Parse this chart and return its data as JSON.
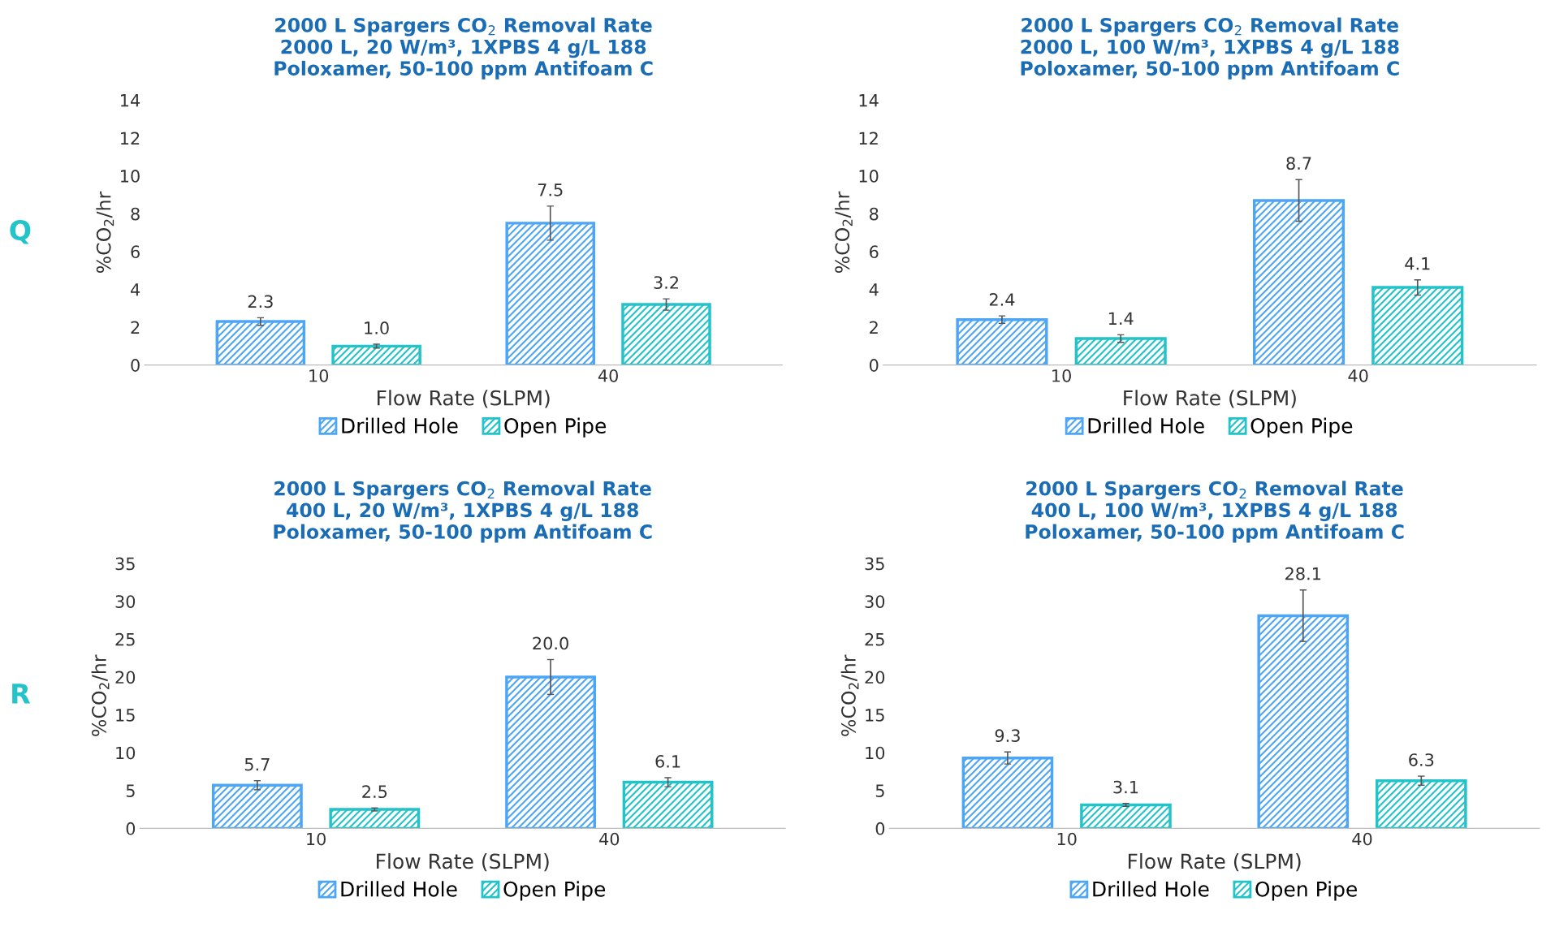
{
  "chart_data": [
    {
      "type": "bar",
      "title": "2000 L Spargers CO$_{2}$ Removal Rate\n2000 L, 20 W/m³, 1XPBS 4 g/L 188\nPoloxamer, 50-100 ppm Antifoam C",
      "xlabel": "Flow Rate (SLPM)",
      "ylabel": "%CO$_{2}$/hr",
      "categories": [
        "10",
        "40"
      ],
      "series": [
        {
          "name": "Drilled Hole",
          "color": "#4da6f5",
          "values": [
            2.3,
            7.5
          ],
          "errors": [
            0.2,
            0.9
          ],
          "value_labels": [
            "2.3",
            "7.5"
          ]
        },
        {
          "name": "Open Pipe",
          "color": "#22c3c9",
          "values": [
            1.0,
            3.2
          ],
          "errors": [
            0.1,
            0.3
          ],
          "value_labels": [
            "1.0",
            "3.2"
          ]
        }
      ],
      "ylim": [
        0,
        14
      ],
      "yticks": [
        0,
        2,
        4,
        6,
        8,
        10,
        12,
        14
      ],
      "legend": "bottom",
      "grid": false,
      "annotations": [
        "Q"
      ]
    },
    {
      "type": "bar",
      "title": "2000 L Spargers CO$_{2}$ Removal Rate\n2000 L, 100 W/m³, 1XPBS 4 g/L 188\nPoloxamer, 50-100 ppm Antifoam C",
      "xlabel": "Flow Rate (SLPM)",
      "ylabel": "%CO$_{2}$/hr",
      "categories": [
        "10",
        "40"
      ],
      "series": [
        {
          "name": "Drilled Hole",
          "color": "#4da6f5",
          "values": [
            2.4,
            8.7
          ],
          "errors": [
            0.2,
            1.1
          ],
          "value_labels": [
            "2.4",
            "8.7"
          ]
        },
        {
          "name": "Open Pipe",
          "color": "#22c3c9",
          "values": [
            1.4,
            4.1
          ],
          "errors": [
            0.2,
            0.4
          ],
          "value_labels": [
            "1.4",
            "4.1"
          ]
        }
      ],
      "ylim": [
        0,
        14
      ],
      "yticks": [
        0,
        2,
        4,
        6,
        8,
        10,
        12,
        14
      ],
      "legend": "bottom",
      "grid": false
    },
    {
      "type": "bar",
      "title": "2000 L Spargers CO$_{2}$ Removal Rate\n400 L, 20 W/m³, 1XPBS 4 g/L 188\nPoloxamer, 50-100 ppm Antifoam C",
      "xlabel": "Flow Rate (SLPM)",
      "ylabel": "%CO$_{2}$/hr",
      "categories": [
        "10",
        "40"
      ],
      "series": [
        {
          "name": "Drilled Hole",
          "color": "#4da6f5",
          "values": [
            5.7,
            20.0
          ],
          "errors": [
            0.6,
            2.3
          ],
          "value_labels": [
            "5.7",
            "20.0"
          ]
        },
        {
          "name": "Open Pipe",
          "color": "#22c3c9",
          "values": [
            2.5,
            6.1
          ],
          "errors": [
            0.2,
            0.6
          ],
          "value_labels": [
            "2.5",
            "6.1"
          ]
        }
      ],
      "ylim": [
        0,
        35
      ],
      "yticks": [
        0,
        5,
        10,
        15,
        20,
        25,
        30,
        35
      ],
      "legend": "bottom",
      "grid": false,
      "annotations": [
        "R"
      ]
    },
    {
      "type": "bar",
      "title": "2000 L Spargers CO$_{2}$ Removal Rate\n400 L, 100 W/m³, 1XPBS 4 g/L 188\nPoloxamer, 50-100 ppm Antifoam C",
      "xlabel": "Flow Rate (SLPM)",
      "ylabel": "%CO$_{2}$/hr",
      "categories": [
        "10",
        "40"
      ],
      "series": [
        {
          "name": "Drilled Hole",
          "color": "#4da6f5",
          "values": [
            9.3,
            28.1
          ],
          "errors": [
            0.8,
            3.4
          ],
          "value_labels": [
            "9.3",
            "28.1"
          ]
        },
        {
          "name": "Open Pipe",
          "color": "#22c3c9",
          "values": [
            3.1,
            6.3
          ],
          "errors": [
            0.2,
            0.6
          ],
          "value_labels": [
            "3.1",
            "6.3"
          ]
        }
      ],
      "ylim": [
        0,
        35
      ],
      "yticks": [
        0,
        5,
        10,
        15,
        20,
        25,
        30,
        35
      ],
      "legend": "bottom",
      "grid": false
    }
  ]
}
